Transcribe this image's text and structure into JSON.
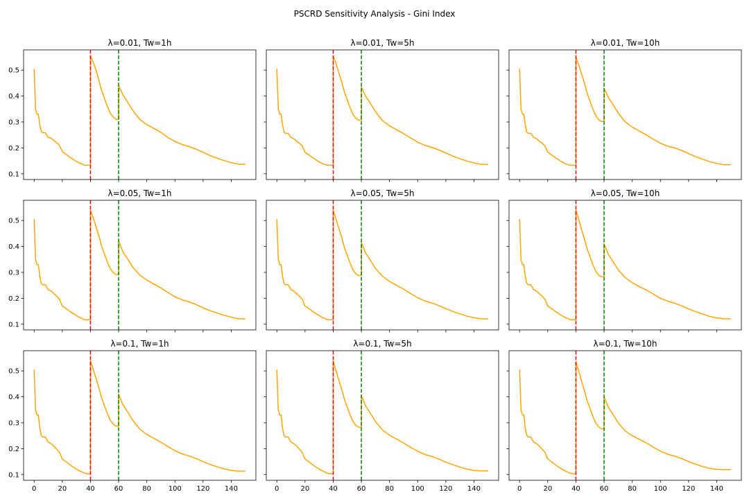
{
  "chart_data": {
    "type": "line",
    "suptitle": "PSCRD Sensitivity Analysis - Gini Index",
    "layout": {
      "rows": 3,
      "cols": 3,
      "sharex": true,
      "sharey": true
    },
    "xlim": [
      -7.5,
      157.5
    ],
    "ylim": [
      0.078,
      0.578
    ],
    "x_ticks": [
      0,
      20,
      40,
      60,
      80,
      100,
      120,
      140
    ],
    "y_ticks": [
      0.1,
      0.2,
      0.3,
      0.4,
      0.5
    ],
    "line_color": "#ffa500",
    "vlines": [
      {
        "x": 40,
        "color": "#ff0000",
        "style": "dashed"
      },
      {
        "x": 60,
        "color": "#008000",
        "style": "dashed"
      }
    ],
    "x_sample": [
      0,
      1,
      2,
      3,
      4,
      5,
      6,
      7,
      8,
      10,
      12,
      14,
      16,
      18,
      20,
      22,
      24,
      26,
      28,
      30,
      32,
      34,
      36,
      38,
      40,
      40,
      42,
      44,
      46,
      48,
      50,
      52,
      54,
      56,
      58,
      60,
      60,
      63,
      66,
      70,
      75,
      80,
      85,
      90,
      95,
      100,
      105,
      110,
      115,
      120,
      125,
      130,
      135,
      140,
      145,
      150
    ],
    "panels": [
      {
        "title": "λ=0.01, Tw=1h",
        "values": [
          0.505,
          0.35,
          0.33,
          0.33,
          0.29,
          0.265,
          0.258,
          0.258,
          0.258,
          0.24,
          0.238,
          0.228,
          0.22,
          0.21,
          0.185,
          0.178,
          0.17,
          0.162,
          0.155,
          0.148,
          0.142,
          0.138,
          0.133,
          0.133,
          0.133,
          0.555,
          0.53,
          0.5,
          0.46,
          0.42,
          0.39,
          0.36,
          0.335,
          0.32,
          0.31,
          0.31,
          0.44,
          0.405,
          0.38,
          0.345,
          0.31,
          0.29,
          0.275,
          0.26,
          0.24,
          0.225,
          0.213,
          0.205,
          0.195,
          0.183,
          0.17,
          0.16,
          0.151,
          0.143,
          0.137,
          0.137
        ]
      },
      {
        "title": "λ=0.01, Tw=5h",
        "values": [
          0.505,
          0.35,
          0.33,
          0.33,
          0.29,
          0.262,
          0.256,
          0.256,
          0.256,
          0.24,
          0.236,
          0.226,
          0.218,
          0.208,
          0.183,
          0.176,
          0.168,
          0.16,
          0.153,
          0.146,
          0.14,
          0.136,
          0.133,
          0.133,
          0.133,
          0.555,
          0.525,
          0.49,
          0.455,
          0.415,
          0.385,
          0.355,
          0.33,
          0.315,
          0.307,
          0.307,
          0.435,
          0.4,
          0.375,
          0.34,
          0.305,
          0.285,
          0.27,
          0.255,
          0.238,
          0.222,
          0.21,
          0.202,
          0.192,
          0.18,
          0.168,
          0.158,
          0.149,
          0.142,
          0.136,
          0.136
        ]
      },
      {
        "title": "λ=0.01, Tw=10h",
        "values": [
          0.505,
          0.35,
          0.33,
          0.33,
          0.29,
          0.262,
          0.256,
          0.256,
          0.256,
          0.24,
          0.236,
          0.226,
          0.218,
          0.208,
          0.183,
          0.176,
          0.168,
          0.16,
          0.153,
          0.146,
          0.14,
          0.136,
          0.133,
          0.133,
          0.133,
          0.55,
          0.52,
          0.485,
          0.45,
          0.41,
          0.38,
          0.35,
          0.325,
          0.31,
          0.302,
          0.302,
          0.43,
          0.395,
          0.37,
          0.335,
          0.3,
          0.28,
          0.265,
          0.25,
          0.233,
          0.218,
          0.207,
          0.2,
          0.19,
          0.178,
          0.166,
          0.156,
          0.147,
          0.14,
          0.135,
          0.135
        ]
      },
      {
        "title": "λ=0.05, Tw=1h",
        "values": [
          0.505,
          0.35,
          0.33,
          0.33,
          0.285,
          0.258,
          0.252,
          0.252,
          0.252,
          0.233,
          0.228,
          0.218,
          0.208,
          0.196,
          0.17,
          0.163,
          0.155,
          0.147,
          0.14,
          0.133,
          0.127,
          0.122,
          0.117,
          0.117,
          0.117,
          0.54,
          0.51,
          0.475,
          0.44,
          0.4,
          0.37,
          0.34,
          0.315,
          0.3,
          0.292,
          0.292,
          0.42,
          0.38,
          0.355,
          0.32,
          0.29,
          0.27,
          0.255,
          0.24,
          0.222,
          0.206,
          0.194,
          0.186,
          0.176,
          0.163,
          0.152,
          0.143,
          0.134,
          0.127,
          0.121,
          0.12
        ]
      },
      {
        "title": "λ=0.05, Tw=5h",
        "values": [
          0.505,
          0.35,
          0.33,
          0.33,
          0.285,
          0.258,
          0.252,
          0.252,
          0.252,
          0.233,
          0.228,
          0.218,
          0.208,
          0.196,
          0.17,
          0.163,
          0.155,
          0.147,
          0.14,
          0.133,
          0.127,
          0.122,
          0.117,
          0.117,
          0.117,
          0.54,
          0.505,
          0.47,
          0.435,
          0.395,
          0.365,
          0.335,
          0.31,
          0.295,
          0.288,
          0.288,
          0.415,
          0.375,
          0.35,
          0.315,
          0.285,
          0.265,
          0.25,
          0.235,
          0.218,
          0.202,
          0.19,
          0.182,
          0.172,
          0.16,
          0.149,
          0.14,
          0.131,
          0.125,
          0.121,
          0.12
        ]
      },
      {
        "title": "λ=0.05, Tw=10h",
        "values": [
          0.505,
          0.35,
          0.33,
          0.33,
          0.285,
          0.258,
          0.252,
          0.252,
          0.252,
          0.233,
          0.228,
          0.218,
          0.208,
          0.196,
          0.17,
          0.163,
          0.155,
          0.147,
          0.14,
          0.133,
          0.127,
          0.122,
          0.117,
          0.117,
          0.117,
          0.54,
          0.505,
          0.465,
          0.43,
          0.39,
          0.36,
          0.33,
          0.305,
          0.29,
          0.283,
          0.283,
          0.41,
          0.37,
          0.345,
          0.31,
          0.28,
          0.26,
          0.245,
          0.232,
          0.216,
          0.2,
          0.189,
          0.181,
          0.171,
          0.159,
          0.148,
          0.139,
          0.13,
          0.124,
          0.121,
          0.121
        ]
      },
      {
        "title": "λ=0.1, Tw=1h",
        "values": [
          0.505,
          0.35,
          0.33,
          0.33,
          0.28,
          0.252,
          0.245,
          0.245,
          0.245,
          0.225,
          0.22,
          0.21,
          0.198,
          0.186,
          0.16,
          0.152,
          0.144,
          0.136,
          0.128,
          0.121,
          0.115,
          0.11,
          0.105,
          0.103,
          0.103,
          0.54,
          0.505,
          0.47,
          0.435,
          0.395,
          0.365,
          0.335,
          0.31,
          0.295,
          0.287,
          0.287,
          0.41,
          0.37,
          0.345,
          0.31,
          0.275,
          0.255,
          0.24,
          0.225,
          0.208,
          0.192,
          0.18,
          0.172,
          0.162,
          0.15,
          0.139,
          0.13,
          0.122,
          0.116,
          0.113,
          0.113
        ]
      },
      {
        "title": "λ=0.1, Tw=5h",
        "values": [
          0.505,
          0.35,
          0.33,
          0.33,
          0.28,
          0.252,
          0.245,
          0.245,
          0.245,
          0.225,
          0.22,
          0.21,
          0.198,
          0.186,
          0.16,
          0.152,
          0.144,
          0.136,
          0.128,
          0.121,
          0.115,
          0.11,
          0.105,
          0.103,
          0.103,
          0.54,
          0.5,
          0.465,
          0.43,
          0.39,
          0.36,
          0.33,
          0.305,
          0.29,
          0.283,
          0.283,
          0.405,
          0.365,
          0.34,
          0.305,
          0.272,
          0.252,
          0.237,
          0.222,
          0.205,
          0.19,
          0.178,
          0.17,
          0.16,
          0.148,
          0.138,
          0.129,
          0.121,
          0.116,
          0.114,
          0.114
        ]
      },
      {
        "title": "λ=0.1, Tw=10h",
        "values": [
          0.505,
          0.35,
          0.33,
          0.33,
          0.28,
          0.252,
          0.245,
          0.245,
          0.245,
          0.225,
          0.22,
          0.21,
          0.198,
          0.186,
          0.16,
          0.152,
          0.144,
          0.136,
          0.128,
          0.121,
          0.115,
          0.11,
          0.105,
          0.103,
          0.103,
          0.535,
          0.5,
          0.46,
          0.425,
          0.385,
          0.355,
          0.325,
          0.3,
          0.285,
          0.277,
          0.277,
          0.4,
          0.36,
          0.335,
          0.3,
          0.268,
          0.25,
          0.236,
          0.222,
          0.206,
          0.19,
          0.179,
          0.171,
          0.162,
          0.15,
          0.14,
          0.131,
          0.124,
          0.12,
          0.119,
          0.119
        ]
      }
    ]
  }
}
